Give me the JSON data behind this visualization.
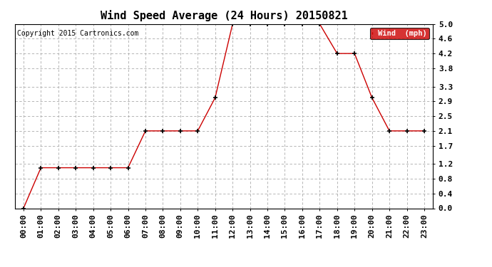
{
  "title": "Wind Speed Average (24 Hours) 20150821",
  "copyright_text": "Copyright 2015 Cartronics.com",
  "legend_label": "Wind  (mph)",
  "x_labels": [
    "00:00",
    "01:00",
    "02:00",
    "03:00",
    "04:00",
    "05:00",
    "06:00",
    "07:00",
    "08:00",
    "09:00",
    "10:00",
    "11:00",
    "12:00",
    "13:00",
    "14:00",
    "15:00",
    "16:00",
    "17:00",
    "18:00",
    "19:00",
    "20:00",
    "21:00",
    "22:00",
    "23:00"
  ],
  "y_values": [
    0.0,
    1.1,
    1.1,
    1.1,
    1.1,
    1.1,
    1.1,
    2.1,
    2.1,
    2.1,
    2.1,
    3.0,
    5.0,
    5.0,
    5.0,
    5.0,
    5.0,
    5.0,
    4.2,
    4.2,
    3.0,
    2.1,
    2.1,
    2.1
  ],
  "y_ticks": [
    0.0,
    0.4,
    0.8,
    1.2,
    1.7,
    2.1,
    2.5,
    2.9,
    3.3,
    3.8,
    4.2,
    4.6,
    5.0
  ],
  "line_color": "#cc0000",
  "marker": "+",
  "grid_color": "#aaaaaa",
  "background_color": "#ffffff",
  "title_fontsize": 11,
  "axis_fontsize": 8,
  "legend_bg": "#cc0000",
  "legend_text_color": "#ffffff",
  "ylim": [
    0.0,
    5.0
  ],
  "figsize": [
    6.9,
    3.75
  ],
  "dpi": 100
}
